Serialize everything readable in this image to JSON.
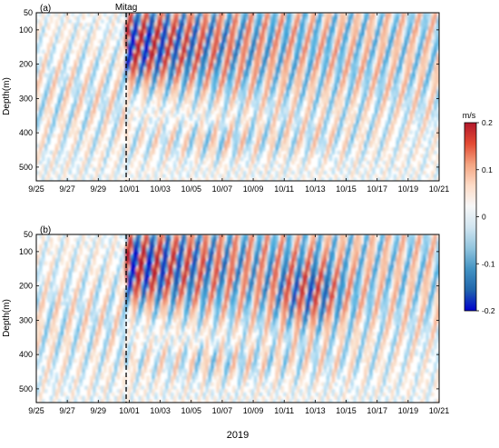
{
  "figure": {
    "event_label": "Mitag",
    "year_label": "2019",
    "colorbar": {
      "unit": "m/s",
      "ticks": [
        0.2,
        0.1,
        0,
        -0.1,
        -0.2
      ],
      "tick_labels": [
        "0.2",
        "0.1",
        "0",
        "-0.1",
        "-0.2"
      ],
      "colors": [
        "#b2182b",
        "#e34a33",
        "#f4a582",
        "#fddbc7",
        "#f7f7f7",
        "#d1e5f0",
        "#92c5de",
        "#4393c3",
        "#2166ac",
        "#0000cc"
      ]
    }
  },
  "chart_data": [
    {
      "type": "heatmap",
      "panel_label": "(a)",
      "ylabel": "Depth(m)",
      "xlabel": "",
      "x_range": [
        "2019-09-25",
        "2019-10-21"
      ],
      "x_ticks": [
        "9/25",
        "9/27",
        "9/29",
        "10/01",
        "10/03",
        "10/05",
        "10/07",
        "10/09",
        "10/11",
        "10/13",
        "10/15",
        "10/17",
        "10/19",
        "10/21"
      ],
      "y_range": [
        50,
        540
      ],
      "y_reversed": true,
      "y_ticks": [
        50,
        100,
        200,
        300,
        400,
        500
      ],
      "value_range": [
        -0.2,
        0.2
      ],
      "typhoon_marker_date": "2019-09-30.8",
      "typhoon_label": "Mitag"
    },
    {
      "type": "heatmap",
      "panel_label": "(b)",
      "ylabel": "Depth(m)",
      "xlabel": "2019",
      "x_range": [
        "2019-09-25",
        "2019-10-21"
      ],
      "x_ticks": [
        "9/25",
        "9/27",
        "9/29",
        "10/01",
        "10/03",
        "10/05",
        "10/07",
        "10/09",
        "10/11",
        "10/13",
        "10/15",
        "10/17",
        "10/19",
        "10/21"
      ],
      "y_range": [
        50,
        540
      ],
      "y_reversed": true,
      "y_ticks": [
        50,
        100,
        200,
        300,
        400,
        500
      ],
      "value_range": [
        -0.2,
        0.2
      ],
      "typhoon_marker_date": "2019-09-30.8"
    }
  ]
}
